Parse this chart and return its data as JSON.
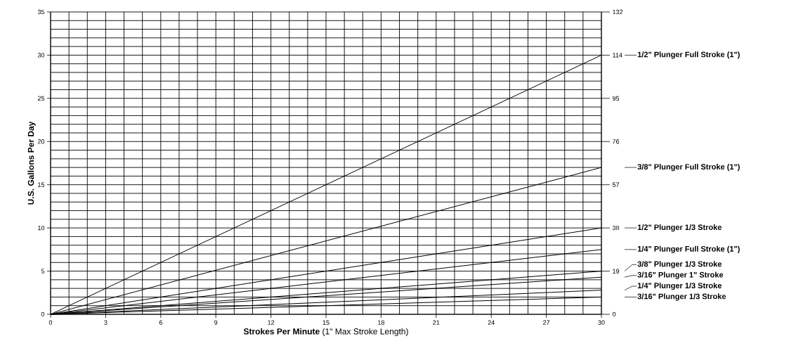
{
  "chart_data": {
    "type": "line",
    "xlabel": "**Strokes Per Minute** (1\" Max Stroke Length)",
    "ylabel": "U.S. Gallons Per Day",
    "xlim": [
      0,
      30
    ],
    "xticks": [
      0,
      3,
      6,
      9,
      12,
      15,
      18,
      21,
      24,
      27,
      30
    ],
    "ylim": [
      0,
      35
    ],
    "yticks": [
      0,
      5,
      10,
      15,
      20,
      25,
      30,
      35
    ],
    "y2lim": [
      0,
      132.49
    ],
    "y2ticks": [
      {
        "value": 0,
        "label": "0"
      },
      {
        "value": 18.93,
        "label": "19"
      },
      {
        "value": 37.85,
        "label": "38"
      },
      {
        "value": 56.78,
        "label": "57"
      },
      {
        "value": 75.71,
        "label": "76"
      },
      {
        "value": 94.64,
        "label": "95"
      },
      {
        "value": 113.56,
        "label": "114"
      },
      {
        "value": 132.49,
        "label": "132"
      }
    ],
    "grid": true,
    "legend": "right",
    "x": [
      0,
      30
    ],
    "series": [
      {
        "name": "1/2\" Plunger Full Stroke (1\")",
        "color": "#000000",
        "values": [
          0,
          30
        ]
      },
      {
        "name": "3/8\" Plunger Full Stroke (1\")",
        "color": "#000000",
        "values": [
          0,
          17
        ]
      },
      {
        "name": "1/2\" Plunger 1/3 Stroke",
        "color": "#000000",
        "values": [
          0,
          10
        ]
      },
      {
        "name": "1/4\" Plunger Full Stroke (1\")",
        "color": "#000000",
        "values": [
          0,
          7.5
        ]
      },
      {
        "name": "3/8\" Plunger 1/3 Stroke",
        "color": "#000000",
        "values": [
          0,
          5
        ]
      },
      {
        "name": "3/16\" Plunger 1\" Stroke",
        "color": "#000000",
        "values": [
          0,
          4.3
        ]
      },
      {
        "name": "1/4\" Plunger 1/3 Stroke",
        "color": "#000000",
        "values": [
          0,
          2.8
        ]
      },
      {
        "name": "3/16\" Plunger 1/3 Stroke",
        "color": "#000000",
        "values": [
          0,
          2.0
        ]
      }
    ]
  }
}
